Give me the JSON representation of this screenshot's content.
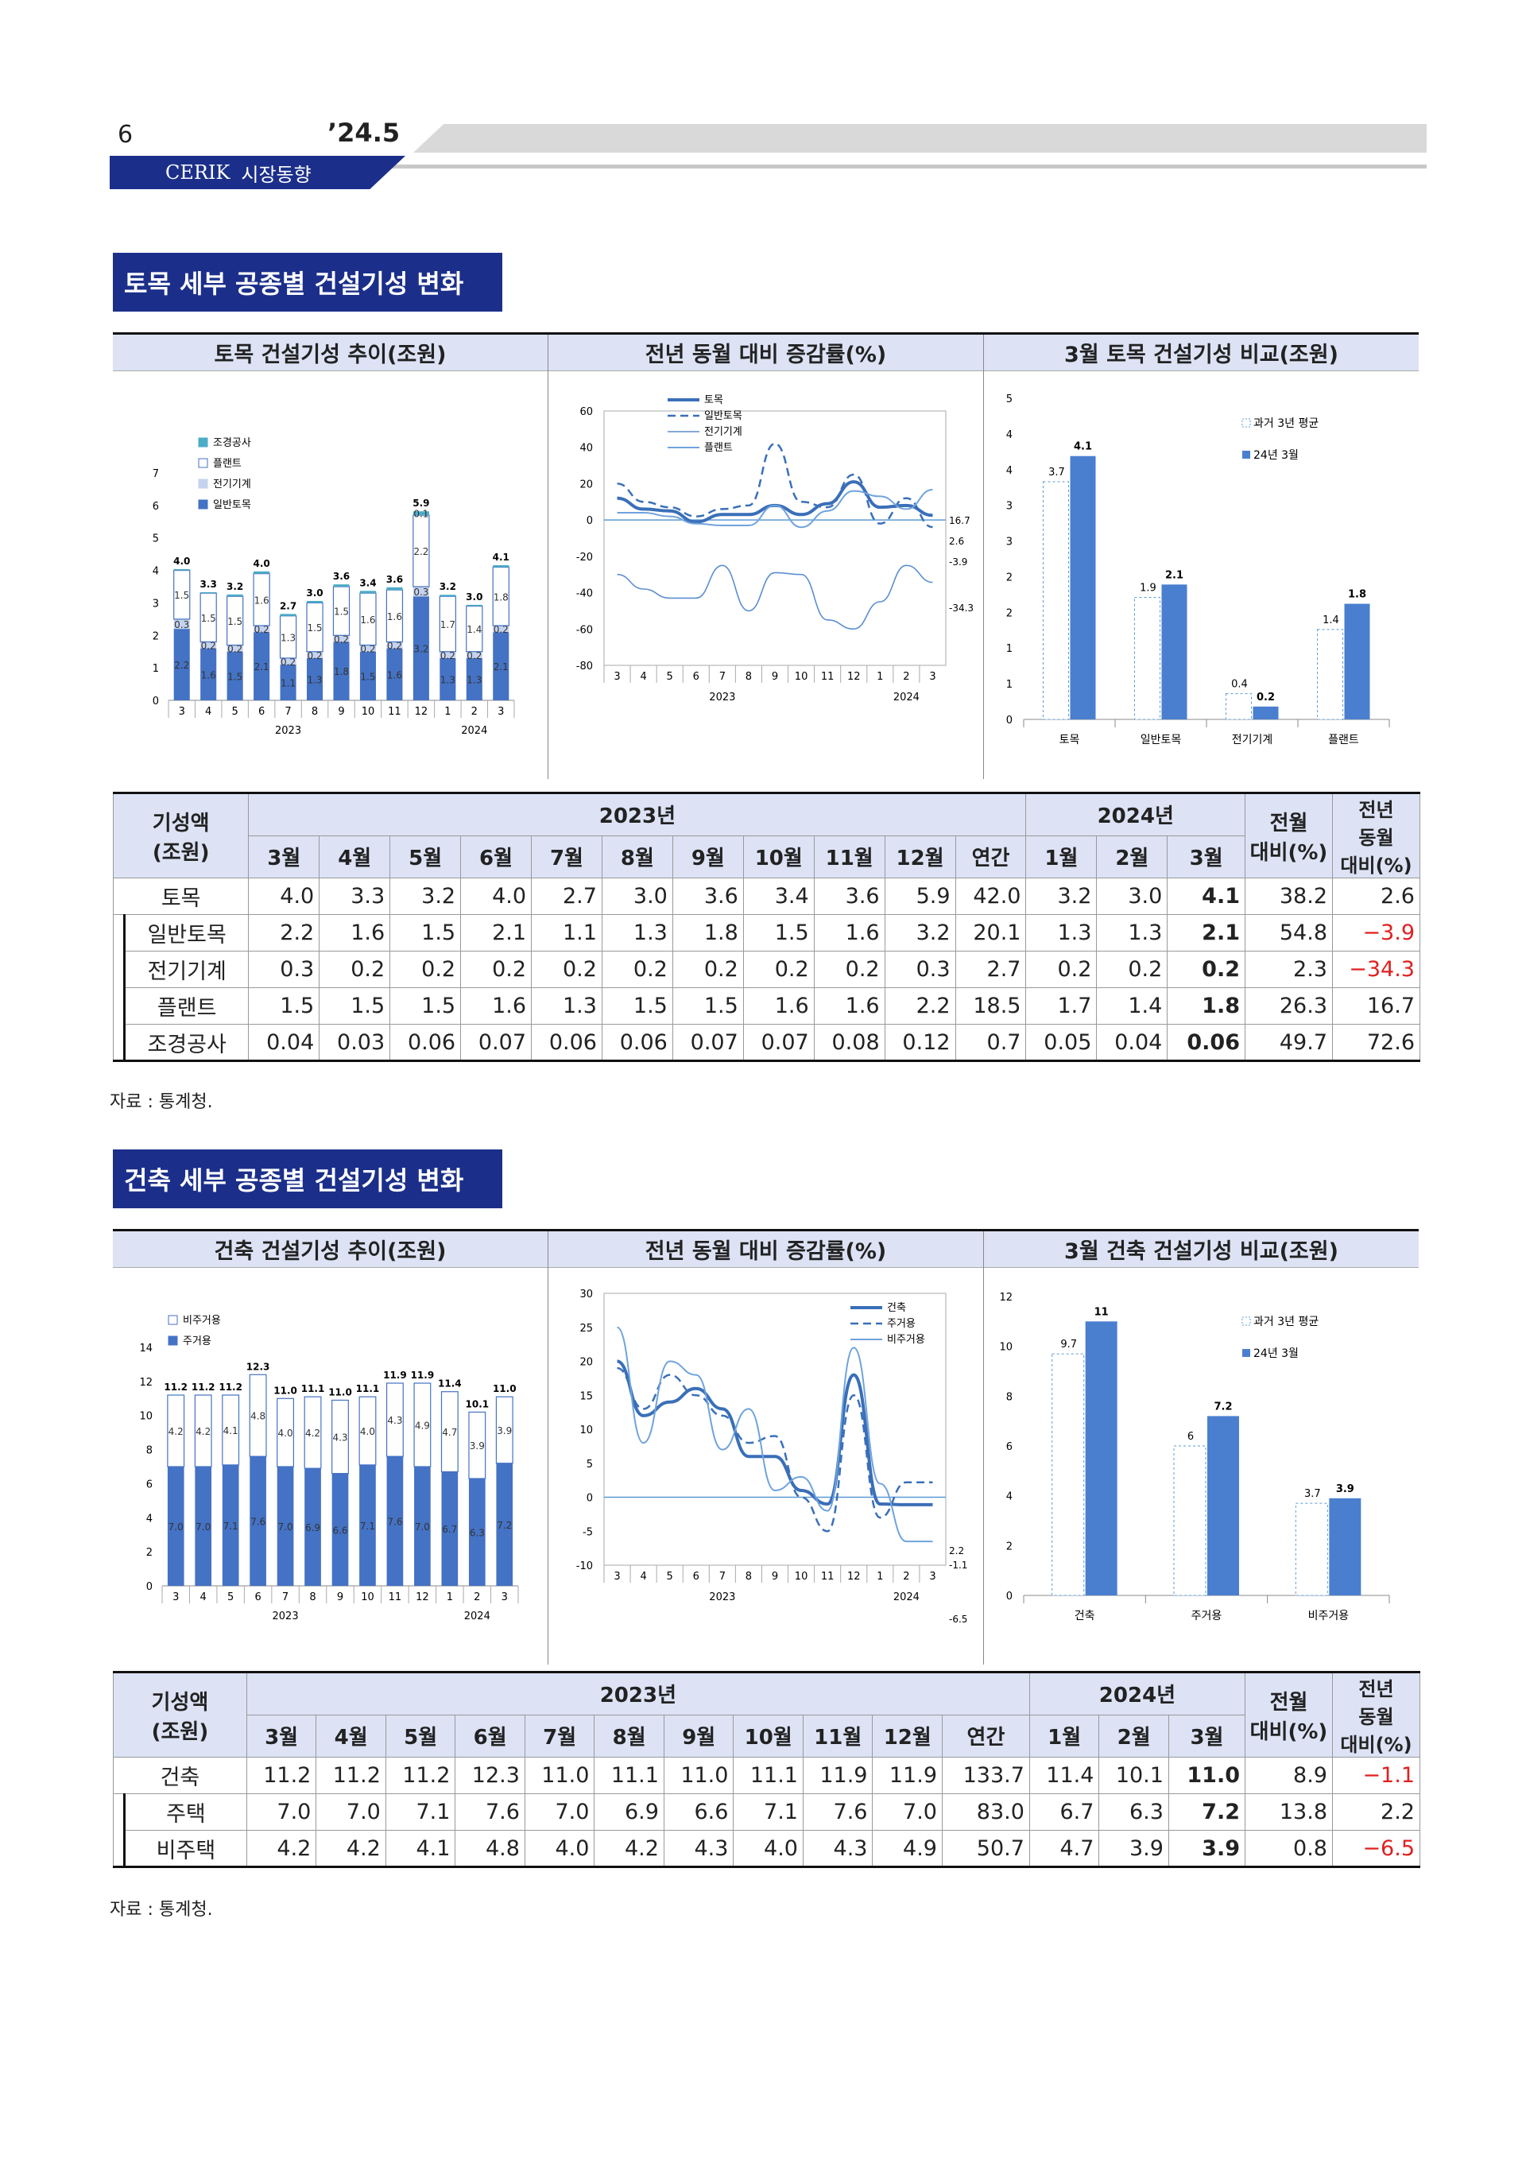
{
  "header": {
    "page_number": "6",
    "issue": "’24.5",
    "brand_name": "CERIK",
    "brand_section": "시장동향"
  },
  "civil": {
    "section_title": "토목 세부 공종별 건설기성 변화",
    "panel_titles": [
      "토목 건설기성 추이(조원)",
      "전년 동월 대비 증감률(%)",
      "3월 토목 건설기성 비교(조원)"
    ],
    "table": {
      "header_label": "기성액\n(조원)",
      "year1": "2023년",
      "year2": "2024년",
      "col_mom": "전월\n대비(%)",
      "col_yoy": "전년\n동월\n대비(%)",
      "months": [
        "3월",
        "4월",
        "5월",
        "6월",
        "7월",
        "8월",
        "9월",
        "10월",
        "11월",
        "12월",
        "연간",
        "1월",
        "2월",
        "3월"
      ],
      "rows": [
        {
          "label": "토목",
          "values": [
            "4.0",
            "3.3",
            "3.2",
            "4.0",
            "2.7",
            "3.0",
            "3.6",
            "3.4",
            "3.6",
            "5.9",
            "42.0",
            "3.2",
            "3.0",
            "4.1"
          ],
          "mom": "38.2",
          "yoy": "2.6"
        },
        {
          "label": "일반토목",
          "values": [
            "2.2",
            "1.6",
            "1.5",
            "2.1",
            "1.1",
            "1.3",
            "1.8",
            "1.5",
            "1.6",
            "3.2",
            "20.1",
            "1.3",
            "1.3",
            "2.1"
          ],
          "mom": "54.8",
          "yoy": "−3.9"
        },
        {
          "label": "전기기계",
          "values": [
            "0.3",
            "0.2",
            "0.2",
            "0.2",
            "0.2",
            "0.2",
            "0.2",
            "0.2",
            "0.2",
            "0.3",
            "2.7",
            "0.2",
            "0.2",
            "0.2"
          ],
          "mom": "2.3",
          "yoy": "−34.3"
        },
        {
          "label": "플랜트",
          "values": [
            "1.5",
            "1.5",
            "1.5",
            "1.6",
            "1.3",
            "1.5",
            "1.5",
            "1.6",
            "1.6",
            "2.2",
            "18.5",
            "1.7",
            "1.4",
            "1.8"
          ],
          "mom": "26.3",
          "yoy": "16.7"
        },
        {
          "label": "조경공사",
          "values": [
            "0.04",
            "0.03",
            "0.06",
            "0.07",
            "0.06",
            "0.06",
            "0.07",
            "0.07",
            "0.08",
            "0.12",
            "0.7",
            "0.05",
            "0.04",
            "0.06"
          ],
          "mom": "49.7",
          "yoy": "72.6"
        }
      ]
    },
    "source": "자료 : 통계청."
  },
  "building": {
    "section_title": "건축 세부 공종별 건설기성 변화",
    "panel_titles": [
      "건축 건설기성 추이(조원)",
      "전년 동월 대비 증감률(%)",
      "3월 건축 건설기성 비교(조원)"
    ],
    "table": {
      "header_label": "기성액\n(조원)",
      "year1": "2023년",
      "year2": "2024년",
      "col_mom": "전월\n대비(%)",
      "col_yoy": "전년\n동월\n대비(%)",
      "months": [
        "3월",
        "4월",
        "5월",
        "6월",
        "7월",
        "8월",
        "9월",
        "10월",
        "11월",
        "12월",
        "연간",
        "1월",
        "2월",
        "3월"
      ],
      "rows": [
        {
          "label": "건축",
          "values": [
            "11.2",
            "11.2",
            "11.2",
            "12.3",
            "11.0",
            "11.1",
            "11.0",
            "11.1",
            "11.9",
            "11.9",
            "133.7",
            "11.4",
            "10.1",
            "11.0"
          ],
          "mom": "8.9",
          "yoy": "−1.1"
        },
        {
          "label": "주택",
          "values": [
            "7.0",
            "7.0",
            "7.1",
            "7.6",
            "7.0",
            "6.9",
            "6.6",
            "7.1",
            "7.6",
            "7.0",
            "83.0",
            "6.7",
            "6.3",
            "7.2"
          ],
          "mom": "13.8",
          "yoy": "2.2"
        },
        {
          "label": "비주택",
          "values": [
            "4.2",
            "4.2",
            "4.1",
            "4.8",
            "4.0",
            "4.2",
            "4.3",
            "4.0",
            "4.3",
            "4.9",
            "50.7",
            "4.7",
            "3.9",
            "3.9"
          ],
          "mom": "0.8",
          "yoy": "−6.5"
        }
      ]
    },
    "source": "자료 : 통계청."
  },
  "chart_data": [
    {
      "type": "bar",
      "stacked": true,
      "categories": [
        "3",
        "4",
        "5",
        "6",
        "7",
        "8",
        "9",
        "10",
        "11",
        "12",
        "1",
        "2",
        "3"
      ],
      "year_labels": [
        "2023",
        "2024"
      ],
      "series": [
        {
          "name": "일반토목",
          "values": [
            2.2,
            1.6,
            1.5,
            2.1,
            1.1,
            1.3,
            1.8,
            1.5,
            1.6,
            3.2,
            1.3,
            1.3,
            2.1
          ],
          "color": "#4472c4"
        },
        {
          "name": "전기기계",
          "values": [
            0.3,
            0.2,
            0.2,
            0.2,
            0.2,
            0.2,
            0.2,
            0.2,
            0.2,
            0.3,
            0.2,
            0.2,
            0.2
          ],
          "color": "#c5d3ee"
        },
        {
          "name": "플랜트",
          "values": [
            1.5,
            1.5,
            1.5,
            1.6,
            1.3,
            1.5,
            1.5,
            1.6,
            1.6,
            2.2,
            1.7,
            1.4,
            1.8
          ],
          "color": "#ffffff"
        },
        {
          "name": "조경공사",
          "values": [
            0.04,
            0.03,
            0.06,
            0.07,
            0.06,
            0.06,
            0.07,
            0.07,
            0.08,
            0.12,
            0.05,
            0.04,
            0.06
          ],
          "color": "#4bacc6"
        }
      ],
      "totals": [
        "4.0",
        "3.3",
        "3.2",
        "4.0",
        "2.7",
        "3.0",
        "3.6",
        "3.4",
        "3.6",
        "5.9",
        "3.2",
        "3.0",
        "4.1"
      ],
      "ylim": [
        0,
        7
      ],
      "yticks": [
        "0",
        "1",
        "2",
        "3",
        "4",
        "5",
        "6",
        "7"
      ],
      "legend_order": [
        "조경공사",
        "플랜트",
        "전기기계",
        "일반토목"
      ],
      "legend": "top-left"
    },
    {
      "type": "line",
      "categories": [
        "3",
        "4",
        "5",
        "6",
        "7",
        "8",
        "9",
        "10",
        "11",
        "12",
        "1",
        "2",
        "3"
      ],
      "year_labels": [
        "2023",
        "2024"
      ],
      "series": [
        {
          "name": "토목",
          "values": [
            12,
            6,
            5,
            -1,
            3,
            3,
            8,
            3,
            9,
            21,
            7,
            8,
            2.6
          ],
          "style": "thick"
        },
        {
          "name": "일반토목",
          "values": [
            20,
            10,
            7,
            2,
            6,
            8,
            42,
            10,
            7,
            25,
            -2,
            12,
            -3.9
          ],
          "style": "dashed"
        },
        {
          "name": "전기기계",
          "values": [
            -30,
            -38,
            -43,
            -43,
            -25,
            -50,
            -29,
            -30,
            -55,
            -60,
            -45,
            -25,
            -34.3
          ],
          "style": "thin"
        },
        {
          "name": "플랜트",
          "values": [
            4,
            4,
            2,
            -2,
            -3,
            -3,
            8,
            -4,
            5,
            16,
            13,
            6,
            16.7
          ],
          "style": "light"
        }
      ],
      "end_labels": [
        "16.7",
        "2.6",
        "-3.9",
        "-34.3"
      ],
      "ylim": [
        -80,
        60
      ],
      "yticks": [
        "60",
        "40",
        "20",
        "0",
        "-20",
        "-40",
        "-60",
        "-80"
      ],
      "legend": "top"
    },
    {
      "type": "bar",
      "categories": [
        "토목",
        "일반토목",
        "전기기계",
        "플랜트"
      ],
      "series": [
        {
          "name": "과거 3년 평균",
          "values": [
            3.7,
            1.9,
            0.4,
            1.4
          ]
        },
        {
          "name": "24년 3월",
          "values": [
            4.1,
            2.1,
            0.2,
            1.8
          ]
        }
      ],
      "ylim": [
        0,
        5
      ],
      "yticks": [
        "0",
        "1",
        "1",
        "2",
        "2",
        "3",
        "3",
        "4",
        "4",
        "5"
      ],
      "legend": "top-right"
    },
    {
      "type": "bar",
      "stacked": true,
      "categories": [
        "3",
        "4",
        "5",
        "6",
        "7",
        "8",
        "9",
        "10",
        "11",
        "12",
        "1",
        "2",
        "3"
      ],
      "year_labels": [
        "2023",
        "2024"
      ],
      "series": [
        {
          "name": "주거용",
          "values": [
            7.0,
            7.0,
            7.1,
            7.6,
            7.0,
            6.9,
            6.6,
            7.1,
            7.6,
            7.0,
            6.7,
            6.3,
            7.2
          ],
          "color": "#4472c4"
        },
        {
          "name": "비주거용",
          "values": [
            4.2,
            4.2,
            4.1,
            4.8,
            4.0,
            4.2,
            4.3,
            4.0,
            4.3,
            4.9,
            4.7,
            3.9,
            3.9
          ],
          "color": "#ffffff"
        }
      ],
      "totals": [
        "11.2",
        "11.2",
        "11.2",
        "12.3",
        "11.0",
        "11.1",
        "11.0",
        "11.1",
        "11.9",
        "11.9",
        "11.4",
        "10.1",
        "11.0"
      ],
      "ylim": [
        0,
        14
      ],
      "yticks": [
        "0",
        "2",
        "4",
        "6",
        "8",
        "10",
        "12",
        "14"
      ],
      "legend_order": [
        "비주거용",
        "주거용"
      ],
      "legend": "top-left"
    },
    {
      "type": "line",
      "categories": [
        "3",
        "4",
        "5",
        "6",
        "7",
        "8",
        "9",
        "10",
        "11",
        "12",
        "1",
        "2",
        "3"
      ],
      "year_labels": [
        "2023",
        "2024"
      ],
      "series": [
        {
          "name": "건축",
          "values": [
            20,
            12,
            14,
            16,
            13,
            6,
            6,
            1,
            -1,
            18,
            -1,
            -1.1,
            -1.1
          ],
          "style": "thick"
        },
        {
          "name": "주거용",
          "values": [
            19,
            13,
            18,
            15,
            12,
            8,
            9,
            0,
            -5,
            15,
            -3,
            2.2,
            2.2
          ],
          "style": "dashed"
        },
        {
          "name": "비주거용",
          "values": [
            25,
            8,
            20,
            18,
            7,
            13,
            1,
            3,
            -2,
            22,
            2,
            -6.5,
            -6.5
          ],
          "style": "light"
        }
      ],
      "end_labels": [
        "2.2",
        "-1.1",
        "-6.5"
      ],
      "ylim": [
        -10,
        30
      ],
      "yticks": [
        "30",
        "25",
        "20",
        "15",
        "10",
        "5",
        "0",
        "-5",
        "-10"
      ],
      "legend": "top-right"
    },
    {
      "type": "bar",
      "categories": [
        "건축",
        "주거용",
        "비주거용"
      ],
      "series": [
        {
          "name": "과거 3년 평균",
          "values": [
            9.7,
            6.0,
            3.7
          ]
        },
        {
          "name": "24년 3월",
          "values": [
            11.0,
            7.2,
            3.9
          ]
        }
      ],
      "ylim": [
        0,
        12
      ],
      "yticks": [
        "0",
        "2",
        "4",
        "6",
        "8",
        "10",
        "12"
      ],
      "legend": "top-right"
    }
  ]
}
